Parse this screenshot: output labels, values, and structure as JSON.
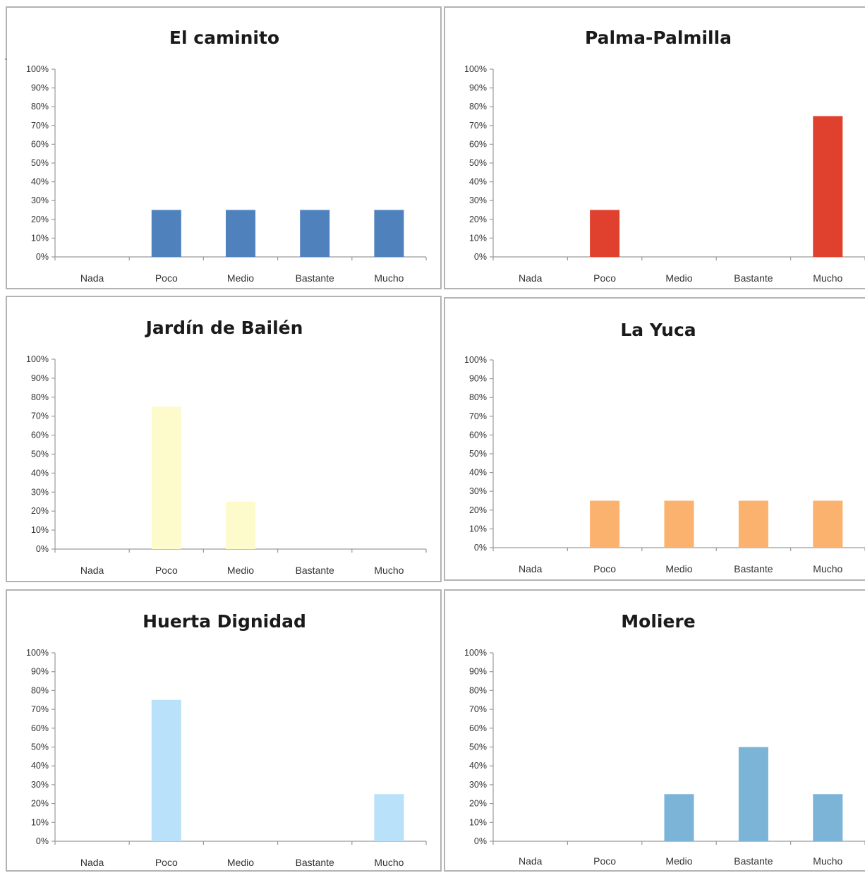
{
  "stray_mark": "`",
  "chart_data": [
    {
      "type": "bar",
      "title": "El caminito",
      "categories": [
        "Nada",
        "Poco",
        "Medio",
        "Bastante",
        "Mucho"
      ],
      "values": [
        0,
        25,
        25,
        25,
        25
      ],
      "ylim": [
        0,
        100
      ],
      "yticks": [
        "0%",
        "10%",
        "20%",
        "30%",
        "40%",
        "50%",
        "60%",
        "70%",
        "80%",
        "90%",
        "100%"
      ],
      "color": "#4f81bd",
      "grid": false,
      "legend": "none"
    },
    {
      "type": "bar",
      "title": "Palma-Palmilla",
      "categories": [
        "Nada",
        "Poco",
        "Medio",
        "Bastante",
        "Mucho"
      ],
      "values": [
        0,
        25,
        0,
        0,
        75
      ],
      "ylim": [
        0,
        100
      ],
      "yticks": [
        "0%",
        "10%",
        "20%",
        "30%",
        "40%",
        "50%",
        "60%",
        "70%",
        "80%",
        "90%",
        "100%"
      ],
      "color": "#e0412e",
      "grid": false,
      "legend": "none"
    },
    {
      "type": "bar",
      "title": "Jardín de Bailén",
      "categories": [
        "Nada",
        "Poco",
        "Medio",
        "Bastante",
        "Mucho"
      ],
      "values": [
        0,
        75,
        25,
        0,
        0
      ],
      "ylim": [
        0,
        100
      ],
      "yticks": [
        "0%",
        "10%",
        "20%",
        "30%",
        "40%",
        "50%",
        "60%",
        "70%",
        "80%",
        "90%",
        "100%"
      ],
      "color": "#fdfacb",
      "grid": false,
      "legend": "none"
    },
    {
      "type": "bar",
      "title": "La Yuca",
      "categories": [
        "Nada",
        "Poco",
        "Medio",
        "Bastante",
        "Mucho"
      ],
      "values": [
        0,
        25,
        25,
        25,
        25
      ],
      "ylim": [
        0,
        100
      ],
      "yticks": [
        "0%",
        "10%",
        "20%",
        "30%",
        "40%",
        "50%",
        "60%",
        "70%",
        "80%",
        "90%",
        "100%"
      ],
      "color": "#fbb26e",
      "grid": false,
      "legend": "none"
    },
    {
      "type": "bar",
      "title": "Huerta Dignidad",
      "categories": [
        "Nada",
        "Poco",
        "Medio",
        "Bastante",
        "Mucho"
      ],
      "values": [
        0,
        75,
        0,
        0,
        25
      ],
      "ylim": [
        0,
        100
      ],
      "yticks": [
        "0%",
        "10%",
        "20%",
        "30%",
        "40%",
        "50%",
        "60%",
        "70%",
        "80%",
        "90%",
        "100%"
      ],
      "color": "#b9e1fa",
      "grid": false,
      "legend": "none"
    },
    {
      "type": "bar",
      "title": "Moliere",
      "categories": [
        "Nada",
        "Poco",
        "Medio",
        "Bastante",
        "Mucho"
      ],
      "values": [
        0,
        0,
        25,
        50,
        25
      ],
      "ylim": [
        0,
        100
      ],
      "yticks": [
        "0%",
        "10%",
        "20%",
        "30%",
        "40%",
        "50%",
        "60%",
        "70%",
        "80%",
        "90%",
        "100%"
      ],
      "color": "#7bb4d7",
      "grid": false,
      "legend": "none"
    }
  ]
}
